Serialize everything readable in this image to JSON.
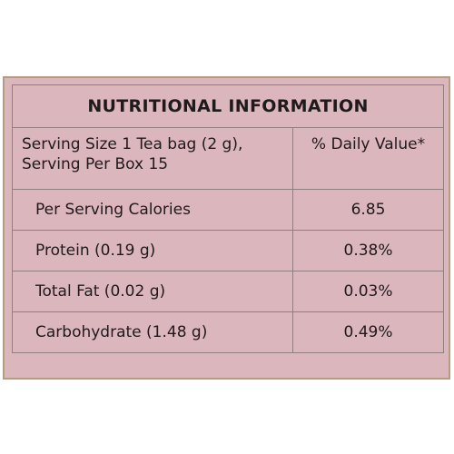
{
  "table": {
    "title": "NUTRITIONAL INFORMATION",
    "serving_line1": "Serving Size 1 Tea bag (2 g),",
    "serving_line2": "Serving Per Box 15",
    "daily_value_header": "% Daily Value*",
    "rows": [
      {
        "label": "Per Serving Calories",
        "value": "6.85"
      },
      {
        "label": "Protein (0.19 g)",
        "value": "0.38%"
      },
      {
        "label": "Total Fat (0.02 g)",
        "value": "0.03%"
      },
      {
        "label": "Carbohydrate (1.48 g)",
        "value": "0.49%"
      }
    ]
  },
  "colors": {
    "background": "#dcb6bd",
    "border": "#8f7f80",
    "frame": "#b89b7e",
    "text": "#1f1a1b"
  }
}
